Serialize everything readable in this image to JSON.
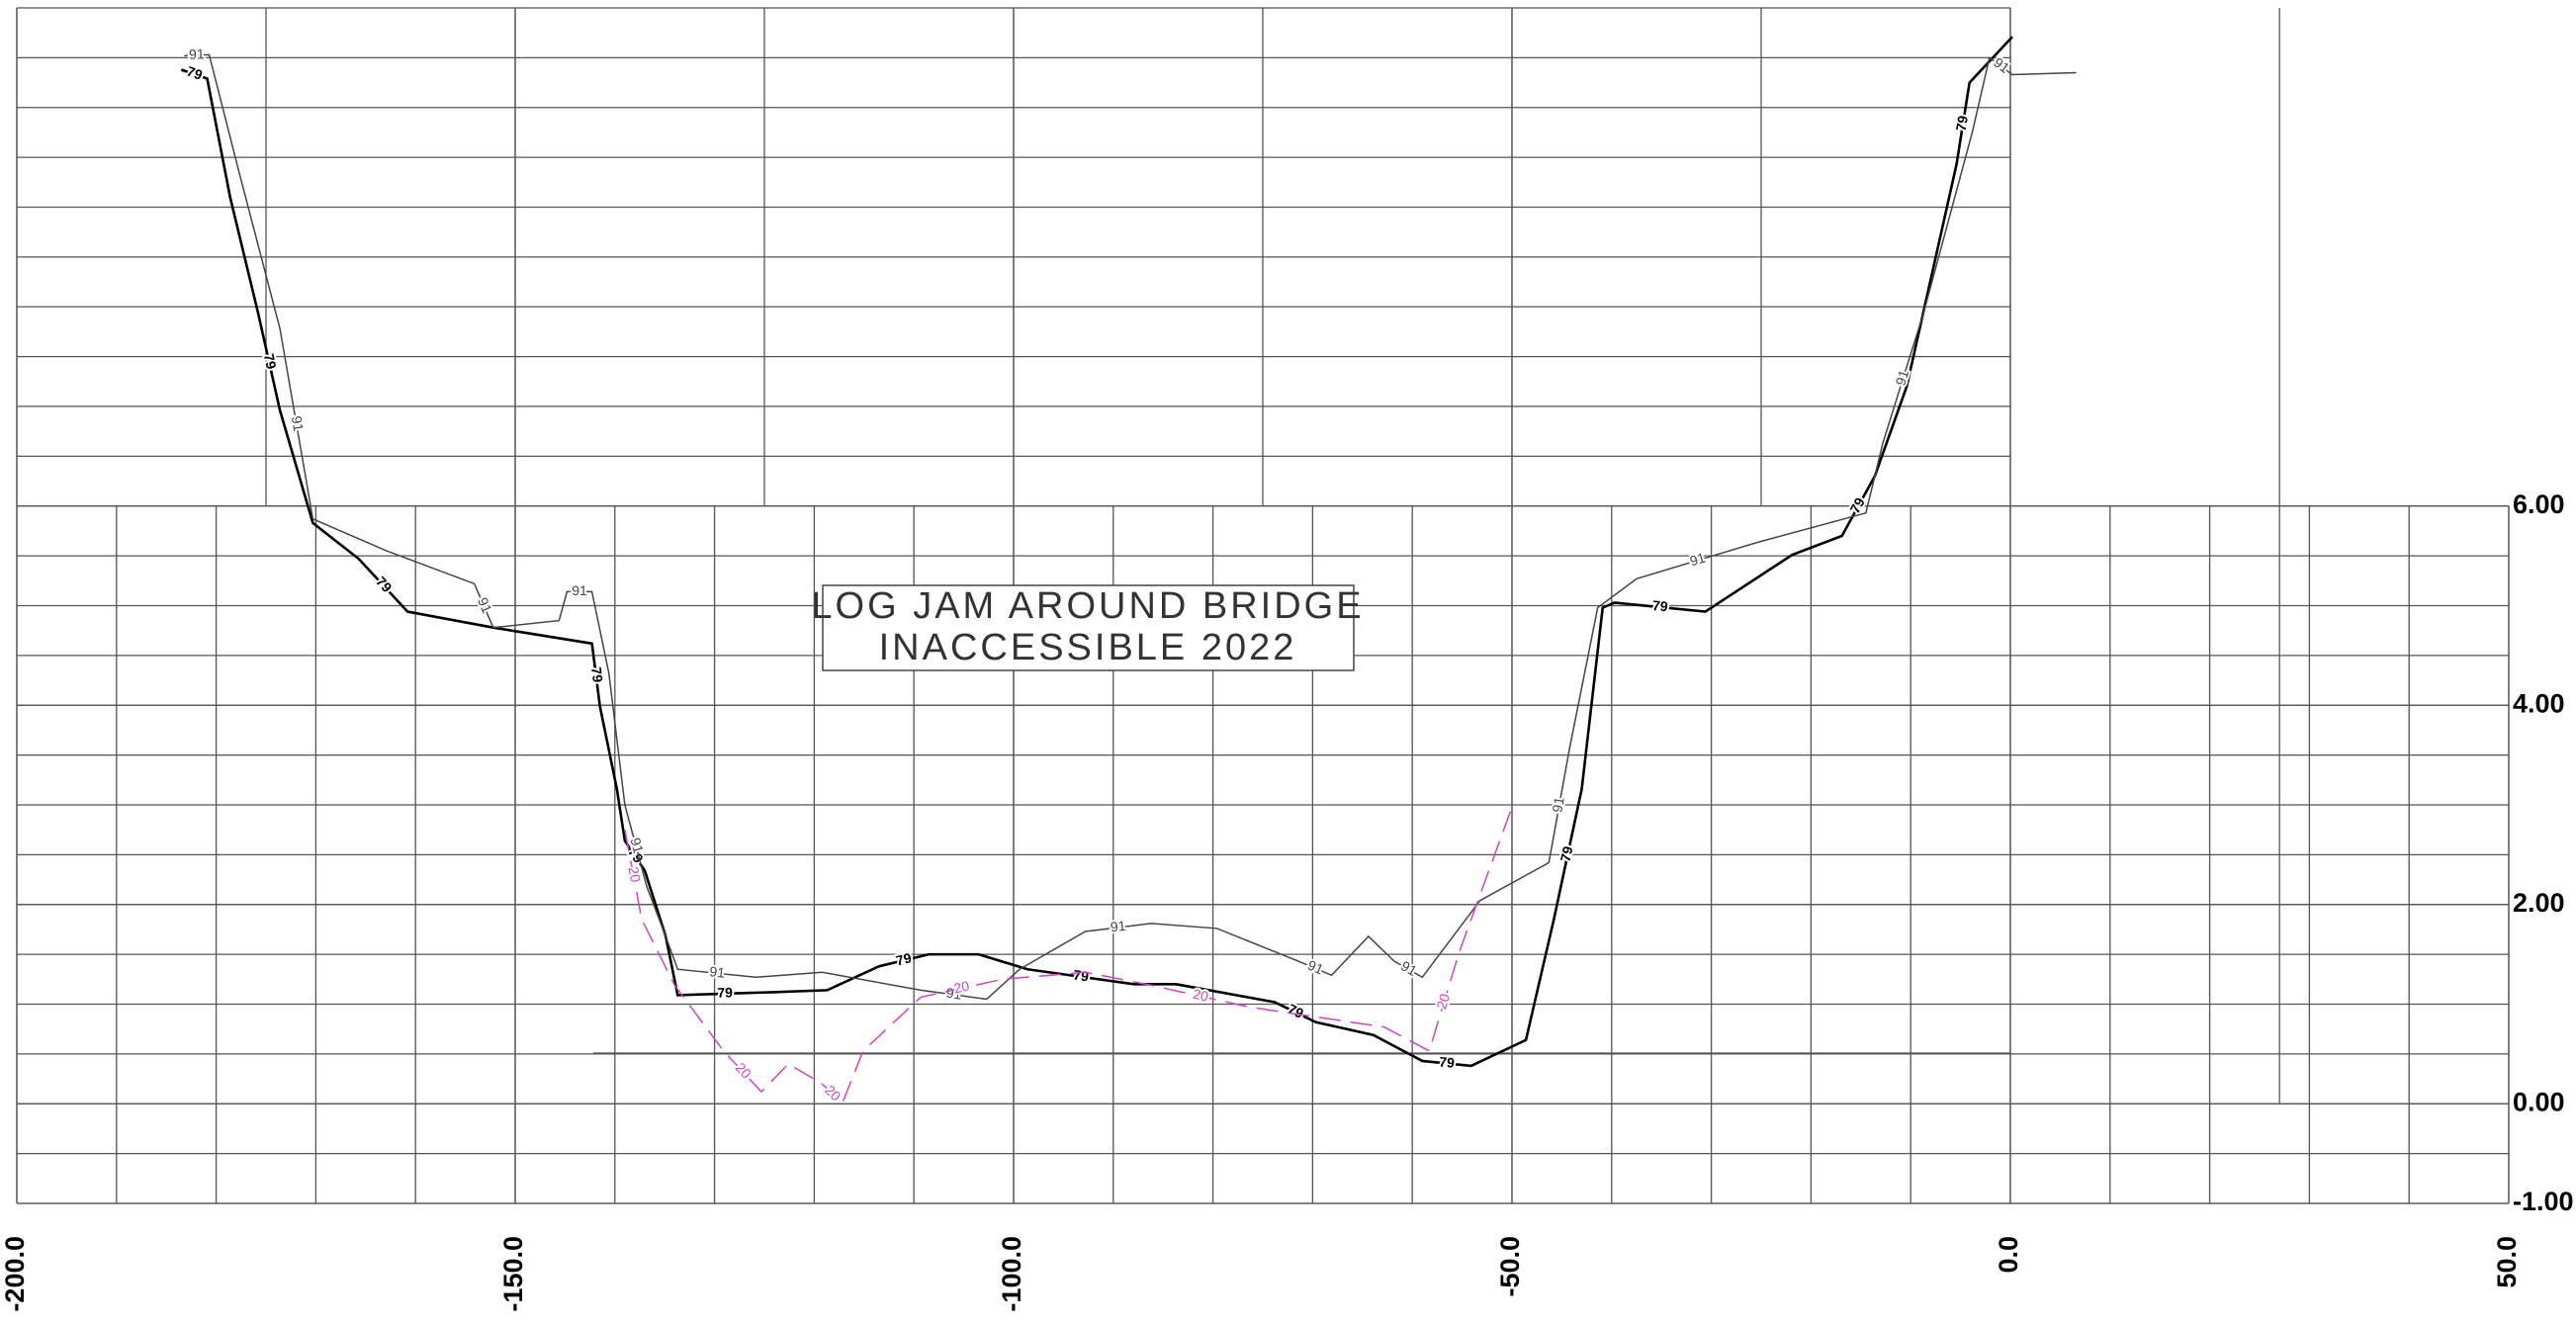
{
  "chart_data": {
    "type": "line",
    "annotation": [
      "LOG JAM AROUND BRIDGE",
      "INACCESSIBLE 2022"
    ],
    "xlim": [
      -200,
      50
    ],
    "ylim": [
      -1,
      11
    ],
    "xticks": [
      {
        "value": -200,
        "label": "-200.0"
      },
      {
        "value": -150,
        "label": "-150.0"
      },
      {
        "value": -100,
        "label": "-100.0"
      },
      {
        "value": -50,
        "label": "-50.0"
      },
      {
        "value": 0,
        "label": "0.0"
      },
      {
        "value": 50,
        "label": "50.0"
      }
    ],
    "yticks": [
      {
        "value": -1,
        "label": "-1.00"
      },
      {
        "value": 0,
        "label": "0.00"
      },
      {
        "value": 2,
        "label": "2.00"
      },
      {
        "value": 4,
        "label": "4.00"
      },
      {
        "value": 6,
        "label": "6.00"
      }
    ],
    "grid": true,
    "series": [
      {
        "name": "79",
        "color": "#000000",
        "dashed": false,
        "x": [
          -183.5,
          -180.9,
          -178.6,
          -175.8,
          -173.6,
          -170.3,
          -165.7,
          -160.8,
          -152.2,
          -142.3,
          -141.5,
          -139.8,
          -139.0,
          -137.0,
          -134.9,
          -133.7,
          -124.2,
          -118.7,
          -113.5,
          -108.5,
          -103.5,
          -98.6,
          -87.9,
          -83.7,
          -73.8,
          -69.7,
          -63.9,
          -59.0,
          -54.1,
          -48.6,
          -45.8,
          -43.0,
          -40.9,
          -39.7,
          -30.6,
          -21.9,
          -16.9,
          -13.6,
          -10.4,
          -5.4,
          -4.1,
          0.2
        ],
        "values": [
          10.38,
          10.29,
          9.1,
          7.94,
          6.96,
          5.83,
          5.47,
          4.94,
          4.78,
          4.62,
          3.99,
          3.16,
          2.64,
          2.34,
          1.68,
          1.09,
          1.12,
          1.14,
          1.38,
          1.5,
          1.5,
          1.35,
          1.2,
          1.2,
          1.02,
          0.82,
          0.69,
          0.43,
          0.38,
          0.64,
          1.85,
          3.16,
          4.98,
          5.03,
          4.94,
          5.51,
          5.7,
          6.3,
          7.2,
          9.43,
          10.25,
          10.71
        ]
      },
      {
        "name": "91",
        "color": "#444444",
        "dashed": false,
        "x": [
          -183.2,
          -180.7,
          -177.7,
          -173.6,
          -170.3,
          -162.9,
          -154.1,
          -152.2,
          -145.6,
          -144.8,
          -142.3,
          -140.6,
          -139.0,
          -136.8,
          -134.9,
          -133.7,
          -125.8,
          -119.2,
          -109.3,
          -102.7,
          -99.4,
          -92.8,
          -86.2,
          -79.6,
          -71.4,
          -68.1,
          -64.4,
          -61.8,
          -59.0,
          -53.2,
          -46.3,
          -44.2,
          -41.4,
          -37.5,
          -25.2,
          -14.5,
          -12.8,
          -8.7,
          -3.8,
          -2.1,
          0.2,
          6.6
        ],
        "values": [
          10.52,
          10.53,
          9.35,
          7.78,
          5.87,
          5.55,
          5.22,
          4.78,
          4.85,
          5.14,
          5.14,
          4.32,
          3.0,
          2.18,
          1.68,
          1.35,
          1.27,
          1.32,
          1.14,
          1.05,
          1.35,
          1.73,
          1.81,
          1.76,
          1.43,
          1.29,
          1.68,
          1.43,
          1.27,
          2.04,
          2.42,
          3.58,
          4.98,
          5.27,
          5.64,
          5.93,
          6.63,
          7.94,
          9.76,
          10.5,
          10.33,
          10.35
        ]
      },
      {
        "name": "20",
        "color": "#cc44cc",
        "dashed": true,
        "x": [
          -139.0,
          -137.3,
          -134.0,
          -129.1,
          -125.3,
          -122.6,
          -119.2,
          -117.2,
          -115.1,
          -109.3,
          -101.1,
          -92.8,
          -86.2,
          -76.3,
          -62.8,
          -58.3,
          -55.3,
          -50.1
        ],
        "values": [
          2.75,
          1.85,
          1.19,
          0.53,
          0.12,
          0.4,
          0.2,
          0.0,
          0.53,
          1.07,
          1.25,
          1.32,
          1.19,
          0.97,
          0.77,
          0.53,
          1.52,
          2.95
        ]
      }
    ]
  }
}
